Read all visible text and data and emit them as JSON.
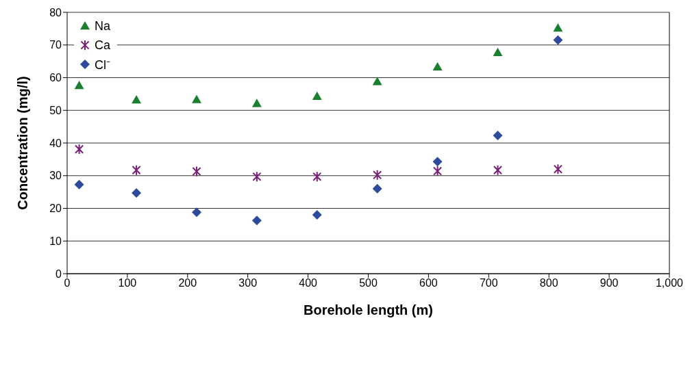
{
  "chart_data": {
    "type": "scatter",
    "xlabel": "Borehole length (m)",
    "ylabel": "Concentration (mg/l)",
    "x": [
      20,
      115,
      215,
      315,
      415,
      515,
      615,
      715,
      815
    ],
    "series": [
      {
        "name": "Na",
        "color": "#1a8030",
        "marker": "triangle",
        "values": [
          57.6,
          53.2,
          53.3,
          52.1,
          54.3,
          58.8,
          63.3,
          67.7,
          75.2
        ]
      },
      {
        "name": "Ca",
        "color": "#7a1e78",
        "marker": "cross",
        "values": [
          38.1,
          31.7,
          31.3,
          29.7,
          29.7,
          30.2,
          31.4,
          31.7,
          32.0
        ]
      },
      {
        "name": "Cl⁻",
        "color": "#2e4b9b",
        "marker": "diamond",
        "values": [
          27.3,
          24.7,
          18.8,
          16.3,
          18.0,
          26.0,
          34.3,
          42.3,
          71.5
        ]
      }
    ],
    "xlim": [
      0,
      1000
    ],
    "xticks": [
      0,
      100,
      200,
      300,
      400,
      500,
      600,
      700,
      800,
      900,
      {
        "value": 1000,
        "label": "1,000"
      }
    ],
    "ylim": [
      0,
      80
    ],
    "yticks": [
      0,
      10,
      20,
      30,
      40,
      50,
      60,
      70,
      80
    ],
    "grid": "y",
    "legend": "top left"
  }
}
